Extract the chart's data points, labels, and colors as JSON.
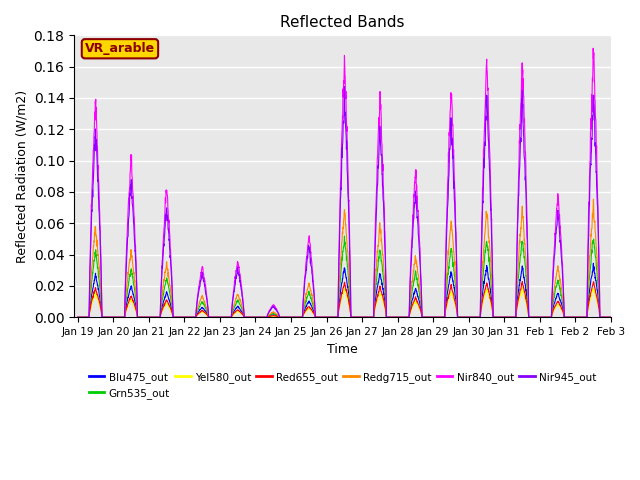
{
  "title": "Reflected Bands",
  "xlabel": "Time",
  "ylabel": "Reflected Radiation (W/m2)",
  "ylim": [
    0,
    0.18
  ],
  "annotation_text": "VR_arable",
  "annotation_color": "#8B0000",
  "annotation_bg": "#FFD700",
  "series": [
    {
      "label": "Blu475_out",
      "color": "#0000FF"
    },
    {
      "label": "Grn535_out",
      "color": "#00CC00"
    },
    {
      "label": "Yel580_out",
      "color": "#FFFF00"
    },
    {
      "label": "Red655_out",
      "color": "#FF0000"
    },
    {
      "label": "Redg715_out",
      "color": "#FF8800"
    },
    {
      "label": "Nir840_out",
      "color": "#FF00FF"
    },
    {
      "label": "Nir945_out",
      "color": "#8800FF"
    }
  ],
  "xtick_labels": [
    "Jan 19",
    "Jan 20",
    "Jan 21",
    "Jan 22",
    "Jan 23",
    "Jan 24",
    "Jan 25",
    "Jan 26",
    "Jan 27",
    "Jan 28",
    "Jan 29",
    "Jan 30",
    "Jan 31",
    "Feb 1",
    "Feb 2",
    "Feb 3"
  ],
  "background_color": "#E8E8E8",
  "grid_color": "white",
  "n_days": 15,
  "n_per_day": 144,
  "day_peaks": [
    0.85,
    0.62,
    0.5,
    0.2,
    0.22,
    0.05,
    0.32,
    1.0,
    0.87,
    0.57,
    0.9,
    1.0,
    1.0,
    0.48,
    1.02,
    0.68
  ],
  "scales": [
    0.032,
    0.05,
    0.018,
    0.022,
    0.068,
    0.165,
    0.14
  ]
}
